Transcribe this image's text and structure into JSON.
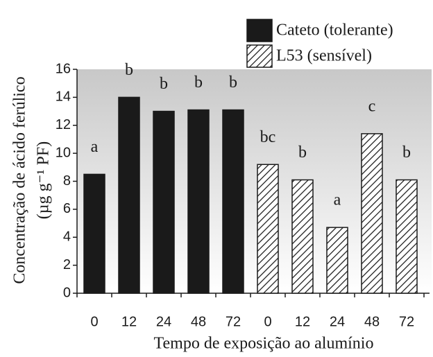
{
  "chart_data": {
    "type": "bar",
    "xlabel": "Tempo de exposição ao alumínio",
    "ylabel": "Concentração de ácido ferúlico",
    "ylabel_unit": "(µg g⁻¹ PF)",
    "categories": [
      "0",
      "12",
      "24",
      "48",
      "72",
      "0",
      "12",
      "24",
      "48",
      "72"
    ],
    "series": [
      {
        "name": "Cateto (tolerante)",
        "color": "#1a1a1a",
        "pattern": "solid",
        "values": [
          8.5,
          14.0,
          13.0,
          13.1,
          13.1,
          null,
          null,
          null,
          null,
          null
        ]
      },
      {
        "name": "L53 (sensível)",
        "color": "#1a1a1a",
        "pattern": "hatch",
        "values": [
          null,
          null,
          null,
          null,
          null,
          9.2,
          8.1,
          4.7,
          11.4,
          8.1
        ]
      }
    ],
    "annotations": [
      "a",
      "b",
      "b",
      "b",
      "b",
      "bc",
      "b",
      "a",
      "c",
      "b"
    ],
    "ylim": [
      0,
      16
    ],
    "yticks": [
      0,
      2,
      4,
      6,
      8,
      10,
      12,
      14,
      16
    ],
    "legend": "top-right"
  }
}
